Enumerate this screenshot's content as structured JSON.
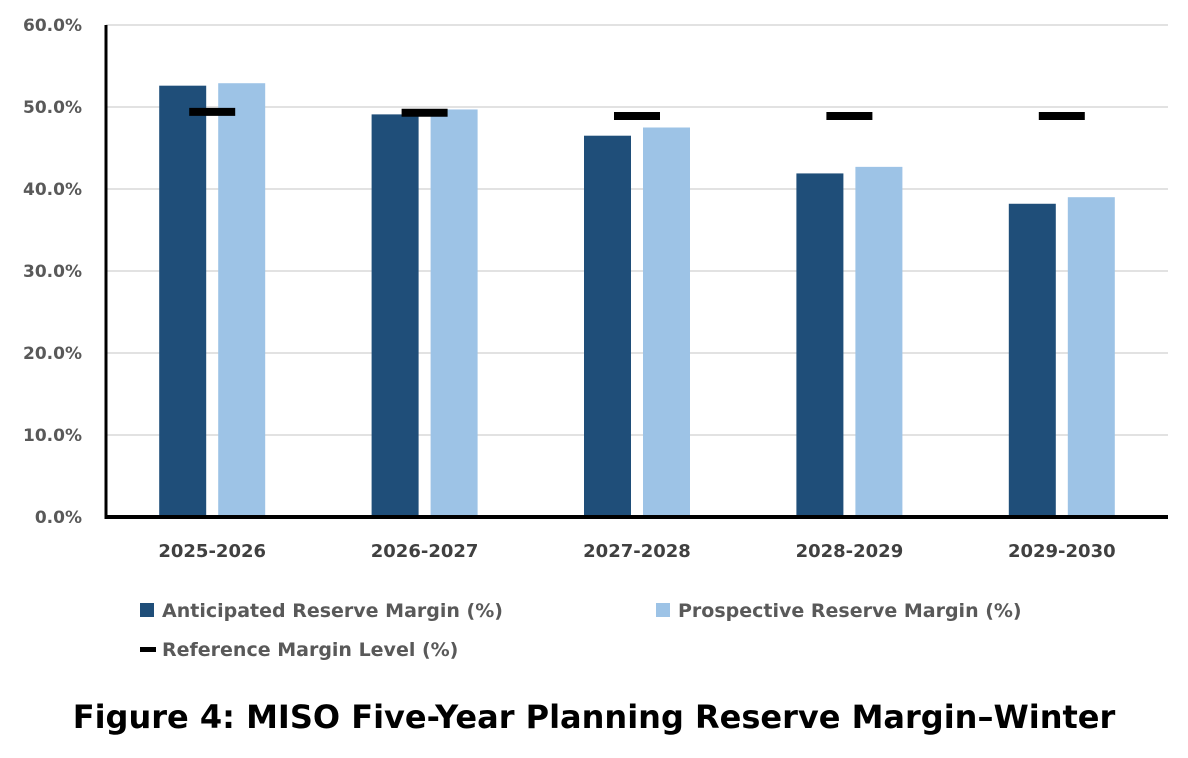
{
  "chart_data": {
    "type": "bar",
    "title": "",
    "xlabel": "",
    "ylabel": "",
    "ylim": [
      0,
      60
    ],
    "y_ticks": [
      "0.0%",
      "10.0%",
      "20.0%",
      "30.0%",
      "40.0%",
      "50.0%",
      "60.0%"
    ],
    "categories": [
      "2025-2026",
      "2026-2027",
      "2027-2028",
      "2028-2029",
      "2029-2030"
    ],
    "series": [
      {
        "name": "Anticipated Reserve Margin (%)",
        "values": [
          52.6,
          49.1,
          46.5,
          41.9,
          38.2
        ],
        "color": "#1F4E79"
      },
      {
        "name": "Prospective Reserve Margin (%)",
        "values": [
          52.9,
          49.7,
          47.5,
          42.7,
          39.0
        ],
        "color": "#9DC3E6"
      }
    ],
    "reference": {
      "name": "Reference Margin Level (%)",
      "values": [
        49.4,
        49.3,
        48.9,
        48.9,
        48.9
      ],
      "color": "#000000"
    },
    "grid": true,
    "legend_position": "bottom"
  },
  "caption": "Figure 4: MISO Five-Year Planning Reserve Margin–Winter"
}
